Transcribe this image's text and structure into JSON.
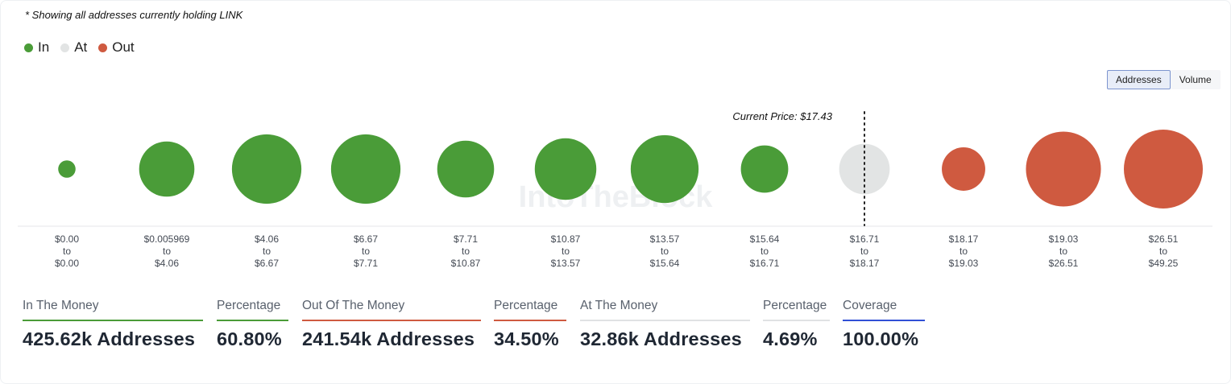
{
  "note": "* Showing all addresses currently holding LINK",
  "legend": [
    {
      "label": "In",
      "color": "#4a9c38"
    },
    {
      "label": "At",
      "color": "#e2e4e4"
    },
    {
      "label": "Out",
      "color": "#cf5a40"
    }
  ],
  "toggle": {
    "addresses_label": "Addresses",
    "volume_label": "Volume",
    "selected": "Addresses"
  },
  "watermark": "IntoTheBlock",
  "chart_data": {
    "type": "bubble",
    "current_price_label": "Current Price: $17.43",
    "current_price_bucket_index": 8,
    "bubbles": [
      {
        "from": "$0.00",
        "to": "$0.00",
        "status": "in",
        "relative_size": 0.22
      },
      {
        "from": "$0.005969",
        "to": "$4.06",
        "status": "in",
        "relative_size": 0.7
      },
      {
        "from": "$4.06",
        "to": "$6.67",
        "status": "in",
        "relative_size": 0.88
      },
      {
        "from": "$6.67",
        "to": "$7.71",
        "status": "in",
        "relative_size": 0.88
      },
      {
        "from": "$7.71",
        "to": "$10.87",
        "status": "in",
        "relative_size": 0.72
      },
      {
        "from": "$10.87",
        "to": "$13.57",
        "status": "in",
        "relative_size": 0.78
      },
      {
        "from": "$13.57",
        "to": "$15.64",
        "status": "in",
        "relative_size": 0.86
      },
      {
        "from": "$15.64",
        "to": "$16.71",
        "status": "in",
        "relative_size": 0.6
      },
      {
        "from": "$16.71",
        "to": "$18.17",
        "status": "at",
        "relative_size": 0.64
      },
      {
        "from": "$18.17",
        "to": "$19.03",
        "status": "out",
        "relative_size": 0.55
      },
      {
        "from": "$19.03",
        "to": "$26.51",
        "status": "out",
        "relative_size": 0.95
      },
      {
        "from": "$26.51",
        "to": "$49.25",
        "status": "out",
        "relative_size": 1.0
      }
    ],
    "to_word": "to"
  },
  "stats": [
    {
      "label": "In The Money",
      "value": "425.62k Addresses",
      "color": "#4a9c38"
    },
    {
      "label": "Percentage",
      "value": "60.80%",
      "color": "#4a9c38"
    },
    {
      "label": "Out Of The Money",
      "value": "241.54k Addresses",
      "color": "#cf5a40"
    },
    {
      "label": "Percentage",
      "value": "34.50%",
      "color": "#cf5a40"
    },
    {
      "label": "At The Money",
      "value": "32.86k Addresses",
      "color": "#e0e2e4"
    },
    {
      "label": "Percentage",
      "value": "4.69%",
      "color": "#e0e2e4"
    },
    {
      "label": "Coverage",
      "value": "100.00%",
      "color": "#3150d6"
    }
  ],
  "colors": {
    "in": "#4a9c38",
    "at": "#e2e4e4",
    "out": "#cf5a40",
    "axis": "#e4e6ea",
    "tick_text": "#444a54"
  }
}
